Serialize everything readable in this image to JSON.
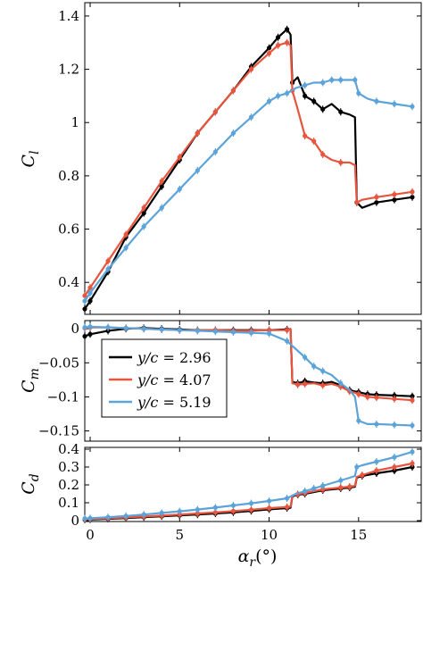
{
  "colors": {
    "black": "#000000",
    "red": "#e8553e",
    "blue": "#5ba3d9"
  },
  "legend": {
    "entries": [
      {
        "label": "y/c = 2.96",
        "color": "#000000"
      },
      {
        "label": "y/c = 4.07",
        "color": "#e8553e"
      },
      {
        "label": "y/c = 5.19",
        "color": "#5ba3d9"
      }
    ]
  },
  "chart_data": [
    {
      "type": "line",
      "panel": "top",
      "ylabel": "C_l",
      "xlim": [
        -0.3,
        18.5
      ],
      "ylim": [
        0.28,
        1.45
      ],
      "yticks": [
        0.4,
        0.6,
        0.8,
        1.0,
        1.2,
        1.4
      ],
      "ytick_labels": [
        "0.4",
        "0.6",
        "0.8",
        "1",
        "1.2",
        "1.4"
      ],
      "xticks": [
        0,
        5,
        10,
        15
      ],
      "grid": false,
      "series": [
        {
          "name": "y/c = 2.96",
          "color": "#000000",
          "x": [
            -0.3,
            0,
            1,
            2,
            3,
            4,
            5,
            6,
            7,
            8,
            9,
            10,
            10.5,
            11,
            11.2,
            11.3,
            11.6,
            12,
            12.5,
            13,
            13.5,
            14,
            14.5,
            14.8,
            14.9,
            15.2,
            16,
            17,
            18
          ],
          "y": [
            0.3,
            0.33,
            0.44,
            0.57,
            0.66,
            0.76,
            0.86,
            0.96,
            1.04,
            1.12,
            1.21,
            1.28,
            1.32,
            1.35,
            1.33,
            1.15,
            1.17,
            1.1,
            1.08,
            1.05,
            1.07,
            1.04,
            1.03,
            1.02,
            0.7,
            0.68,
            0.7,
            0.71,
            0.72
          ]
        },
        {
          "name": "y/c = 4.07",
          "color": "#e8553e",
          "x": [
            -0.3,
            0,
            1,
            2,
            3,
            4,
            5,
            6,
            7,
            8,
            9,
            10,
            10.5,
            11,
            11.2,
            11.3,
            11.6,
            12,
            12.5,
            13,
            13.5,
            14,
            14.5,
            14.8,
            14.9,
            15.2,
            16,
            17,
            18
          ],
          "y": [
            0.35,
            0.38,
            0.48,
            0.58,
            0.68,
            0.78,
            0.87,
            0.96,
            1.04,
            1.12,
            1.2,
            1.26,
            1.29,
            1.3,
            1.29,
            1.12,
            1.05,
            0.95,
            0.93,
            0.88,
            0.86,
            0.85,
            0.85,
            0.84,
            0.7,
            0.71,
            0.72,
            0.73,
            0.74
          ]
        },
        {
          "name": "y/c = 5.19",
          "color": "#5ba3d9",
          "x": [
            -0.3,
            0,
            1,
            2,
            3,
            4,
            5,
            6,
            7,
            8,
            9,
            10,
            10.5,
            11,
            11.5,
            12,
            12.5,
            13,
            13.5,
            14,
            14.5,
            14.8,
            15,
            15.5,
            16,
            17,
            18
          ],
          "y": [
            0.33,
            0.36,
            0.45,
            0.53,
            0.61,
            0.68,
            0.75,
            0.82,
            0.89,
            0.96,
            1.02,
            1.08,
            1.1,
            1.11,
            1.13,
            1.14,
            1.15,
            1.15,
            1.16,
            1.16,
            1.16,
            1.16,
            1.11,
            1.09,
            1.08,
            1.07,
            1.06
          ]
        }
      ]
    },
    {
      "type": "line",
      "panel": "middle",
      "ylabel": "C_m",
      "xlim": [
        -0.3,
        18.5
      ],
      "ylim": [
        -0.165,
        0.012
      ],
      "yticks": [
        0,
        -0.05,
        -0.1,
        -0.15
      ],
      "ytick_labels": [
        "0",
        "−0.05",
        "−0.1",
        "−0.15"
      ],
      "xticks": [
        0,
        5,
        10,
        15
      ],
      "grid": false,
      "series": [
        {
          "name": "y/c = 2.96",
          "color": "#000000",
          "x": [
            -0.3,
            0,
            1,
            2,
            3,
            4,
            5,
            6,
            7,
            8,
            9,
            10,
            11,
            11.2,
            11.3,
            11.6,
            12,
            12.5,
            13,
            13.5,
            14,
            14.5,
            14.8,
            15,
            15.5,
            16,
            17,
            18
          ],
          "y": [
            -0.011,
            -0.008,
            -0.003,
            0.0,
            0.001,
            0.0,
            -0.001,
            -0.002,
            -0.002,
            -0.002,
            -0.002,
            -0.002,
            -0.001,
            -0.001,
            -0.078,
            -0.08,
            -0.077,
            -0.079,
            -0.08,
            -0.078,
            -0.083,
            -0.09,
            -0.092,
            -0.093,
            -0.096,
            -0.097,
            -0.098,
            -0.099
          ]
        },
        {
          "name": "y/c = 4.07",
          "color": "#e8553e",
          "x": [
            -0.3,
            0,
            1,
            2,
            3,
            4,
            5,
            6,
            7,
            8,
            9,
            10,
            11,
            11.2,
            11.3,
            11.6,
            12,
            12.5,
            13,
            13.5,
            14,
            14.5,
            14.8,
            15,
            15.5,
            16,
            17,
            18
          ],
          "y": [
            0.001,
            0.002,
            0.002,
            0.001,
            0.0,
            -0.001,
            -0.002,
            -0.002,
            -0.002,
            -0.003,
            -0.003,
            -0.002,
            -0.002,
            0.0,
            -0.08,
            -0.082,
            -0.081,
            -0.08,
            -0.083,
            -0.081,
            -0.085,
            -0.092,
            -0.094,
            -0.096,
            -0.1,
            -0.101,
            -0.103,
            -0.105
          ]
        },
        {
          "name": "y/c = 5.19",
          "color": "#5ba3d9",
          "x": [
            -0.3,
            0,
            1,
            2,
            3,
            4,
            5,
            6,
            7,
            8,
            9,
            10,
            11,
            11.5,
            12,
            12.5,
            13,
            13.5,
            14,
            14.5,
            14.8,
            15,
            15.5,
            16,
            17,
            18
          ],
          "y": [
            0.002,
            0.003,
            0.002,
            0.001,
            0.0,
            -0.001,
            -0.002,
            -0.003,
            -0.004,
            -0.005,
            -0.006,
            -0.007,
            -0.018,
            -0.03,
            -0.042,
            -0.055,
            -0.062,
            -0.068,
            -0.08,
            -0.09,
            -0.1,
            -0.135,
            -0.14,
            -0.14,
            -0.141,
            -0.142
          ]
        }
      ]
    },
    {
      "type": "line",
      "panel": "bottom",
      "ylabel": "C_d",
      "xlabel": "α_r(°)",
      "xlim": [
        -0.3,
        18.5
      ],
      "ylim": [
        -0.005,
        0.41
      ],
      "yticks": [
        0,
        0.1,
        0.2,
        0.3,
        0.4
      ],
      "ytick_labels": [
        "0",
        "0.1",
        "0.2",
        "0.3",
        "0.4"
      ],
      "xticks": [
        0,
        5,
        10,
        15
      ],
      "xtick_labels": [
        "0",
        "5",
        "10",
        "15"
      ],
      "grid": false,
      "series": [
        {
          "name": "y/c = 2.96",
          "color": "#000000",
          "x": [
            -0.3,
            0,
            1,
            2,
            3,
            4,
            5,
            6,
            7,
            8,
            9,
            10,
            11,
            11.2,
            11.3,
            11.6,
            12,
            12.5,
            13,
            13.5,
            14,
            14.5,
            14.8,
            14.9,
            15.2,
            16,
            17,
            18
          ],
          "y": [
            0.005,
            0.006,
            0.01,
            0.014,
            0.019,
            0.024,
            0.029,
            0.034,
            0.04,
            0.046,
            0.054,
            0.063,
            0.07,
            0.072,
            0.135,
            0.145,
            0.15,
            0.16,
            0.17,
            0.175,
            0.18,
            0.185,
            0.19,
            0.24,
            0.25,
            0.265,
            0.28,
            0.3
          ]
        },
        {
          "name": "y/c = 4.07",
          "color": "#e8553e",
          "x": [
            -0.3,
            0,
            1,
            2,
            3,
            4,
            5,
            6,
            7,
            8,
            9,
            10,
            11,
            11.2,
            11.3,
            11.6,
            12,
            12.5,
            13,
            13.5,
            14,
            14.5,
            14.8,
            14.9,
            15.2,
            16,
            17,
            18
          ],
          "y": [
            0.008,
            0.009,
            0.013,
            0.018,
            0.023,
            0.028,
            0.034,
            0.04,
            0.046,
            0.053,
            0.061,
            0.07,
            0.076,
            0.078,
            0.14,
            0.148,
            0.155,
            0.165,
            0.175,
            0.18,
            0.185,
            0.19,
            0.195,
            0.245,
            0.255,
            0.28,
            0.3,
            0.32
          ]
        },
        {
          "name": "y/c = 5.19",
          "color": "#5ba3d9",
          "x": [
            -0.3,
            0,
            1,
            2,
            3,
            4,
            5,
            6,
            7,
            8,
            9,
            10,
            11,
            11.5,
            12,
            12.5,
            13,
            13.5,
            14,
            14.5,
            14.8,
            14.9,
            15.2,
            16,
            17,
            18
          ],
          "y": [
            0.012,
            0.013,
            0.019,
            0.026,
            0.034,
            0.043,
            0.052,
            0.062,
            0.073,
            0.085,
            0.097,
            0.11,
            0.125,
            0.15,
            0.165,
            0.18,
            0.195,
            0.21,
            0.225,
            0.24,
            0.25,
            0.3,
            0.31,
            0.33,
            0.355,
            0.385
          ]
        }
      ]
    }
  ]
}
